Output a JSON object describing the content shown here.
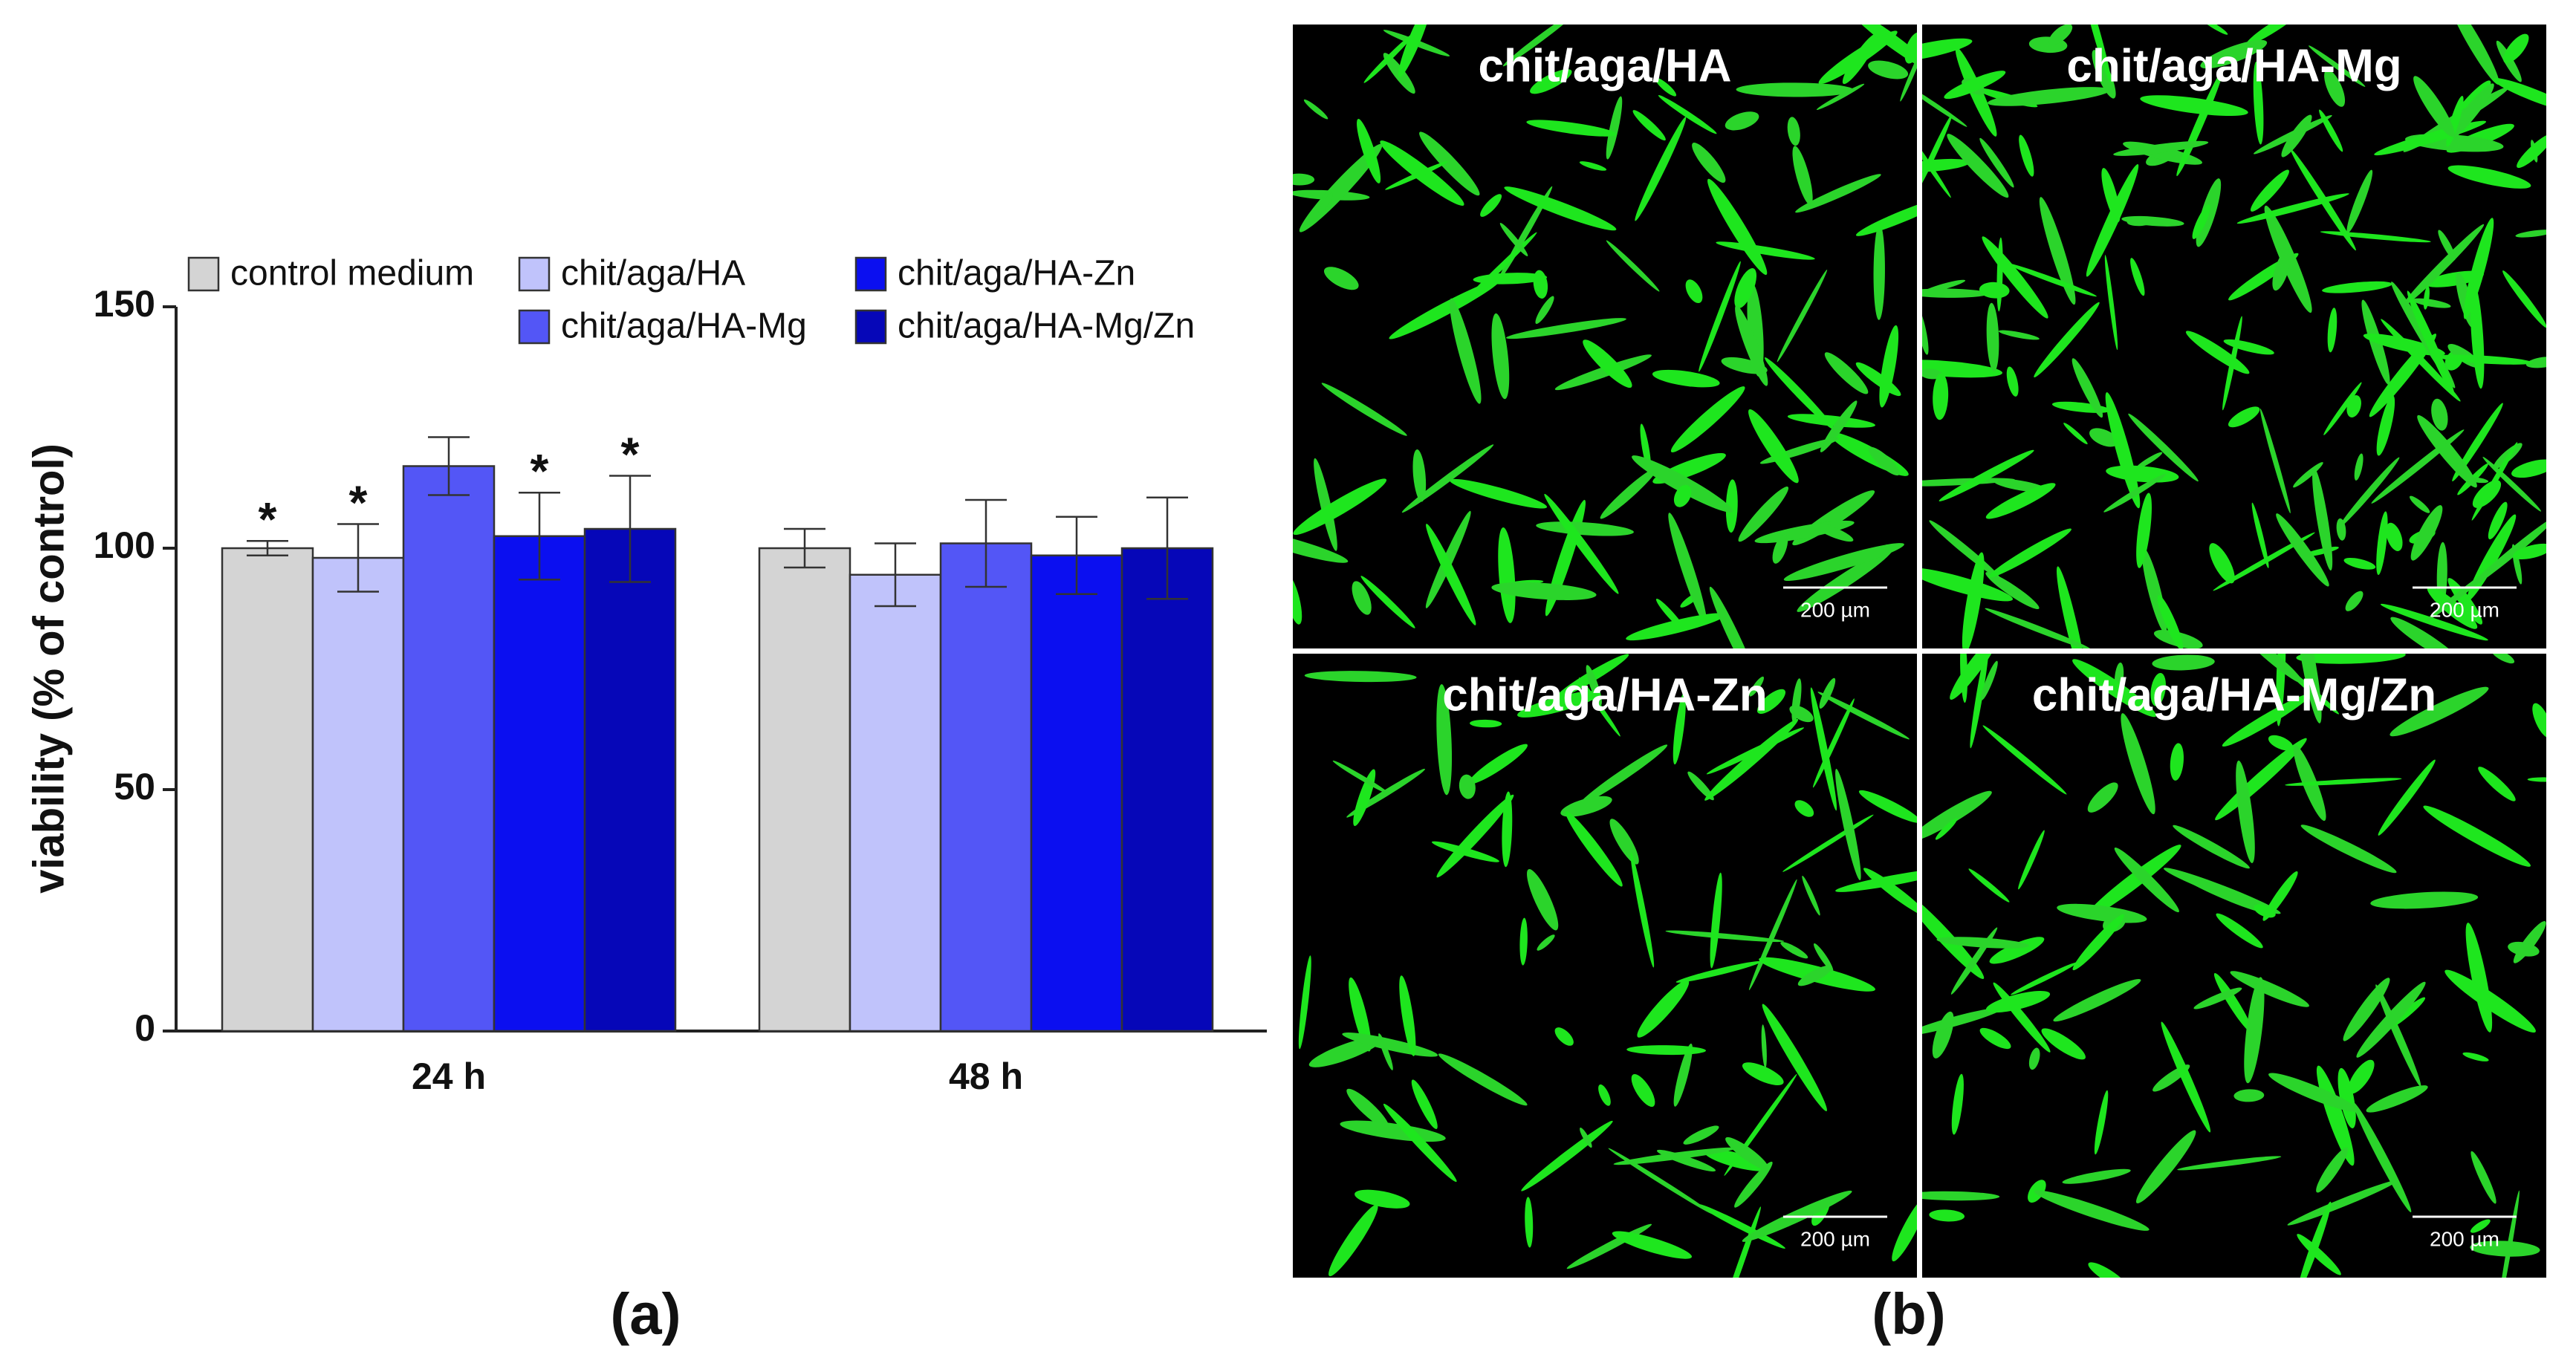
{
  "chart_data": {
    "type": "bar",
    "panel_label": "(a)",
    "y_label": "viability (% of control)",
    "categories": [
      "24 h",
      "48 h"
    ],
    "series": [
      {
        "name": "control medium",
        "color": "#d4d4d4",
        "values": [
          100,
          100
        ],
        "errors": [
          1.5,
          4
        ]
      },
      {
        "name": "chit/aga/HA",
        "color": "#c0c3fb",
        "values": [
          98,
          94.5
        ],
        "errors": [
          7,
          6.5
        ]
      },
      {
        "name": "chit/aga/HA-Mg",
        "color": "#5356f6",
        "values": [
          117,
          101
        ],
        "errors": [
          6,
          9
        ]
      },
      {
        "name": "chit/aga/HA-Zn",
        "color": "#0b0ff0",
        "values": [
          102.5,
          98.5
        ],
        "errors": [
          9,
          8
        ]
      },
      {
        "name": "chit/aga/HA-Mg/Zn",
        "color": "#0607b8",
        "values": [
          104,
          100
        ],
        "errors": [
          11,
          10.5
        ]
      }
    ],
    "significance_marks": [
      {
        "label": "*",
        "series": 0,
        "category": 0
      },
      {
        "label": "*",
        "series": 1,
        "category": 0
      },
      {
        "label": "*",
        "series": 3,
        "category": 0
      },
      {
        "label": "*",
        "series": 4,
        "category": 0
      }
    ],
    "ylim": [
      0,
      150
    ],
    "yticks": [
      0,
      50,
      100,
      150
    ],
    "grid": false
  },
  "images": {
    "panel_label": "(b)",
    "panels": [
      {
        "title": "chit/aga/HA",
        "scale_bar": "200 µm"
      },
      {
        "title": "chit/aga/HA-Mg",
        "scale_bar": "200 µm"
      },
      {
        "title": "chit/aga/HA-Zn",
        "scale_bar": "200 µm"
      },
      {
        "title": "chit/aga/HA-Mg/Zn",
        "scale_bar": "200 µm"
      }
    ]
  }
}
